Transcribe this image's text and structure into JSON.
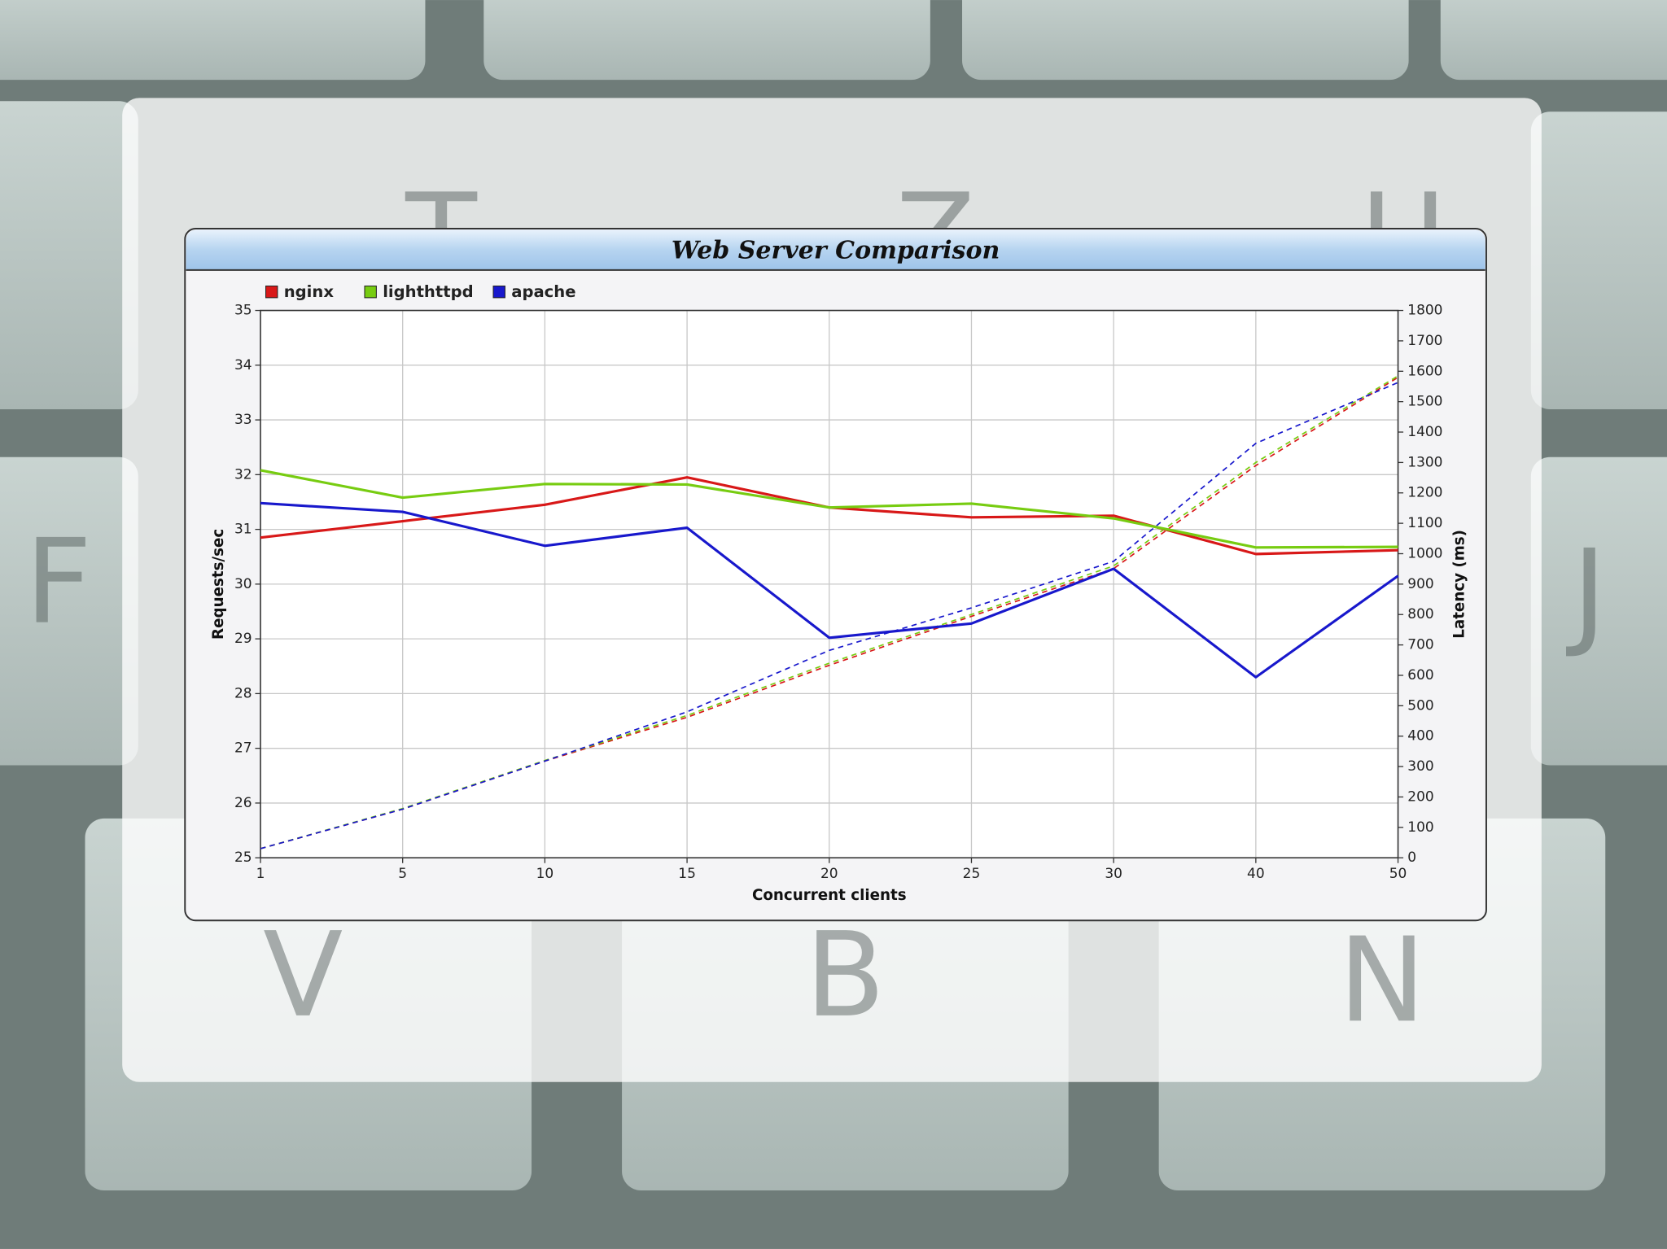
{
  "keyboard_keys": [
    "T",
    "Z",
    "U",
    "F",
    "J",
    "V",
    "B",
    "N"
  ],
  "chart_data": {
    "type": "line",
    "title": "Web Server Comparison",
    "x_label": "Concurrent clients",
    "y_label": "Requests/sec",
    "y2_label": "Latency (ms)",
    "categories": [
      "1",
      "5",
      "10",
      "15",
      "20",
      "25",
      "30",
      "40",
      "50"
    ],
    "ylim": [
      25,
      35
    ],
    "yticks": [
      25,
      26,
      27,
      28,
      29,
      30,
      31,
      32,
      33,
      34,
      35
    ],
    "y2lim": [
      0,
      1800
    ],
    "y2ticks": [
      0,
      100,
      200,
      300,
      400,
      500,
      600,
      700,
      800,
      900,
      1000,
      1100,
      1200,
      1300,
      1400,
      1500,
      1600,
      1700,
      1800
    ],
    "grid": true,
    "series": [
      {
        "name": "nginx",
        "color": "#d81818",
        "values": [
          30.85,
          31.15,
          31.45,
          31.95,
          31.4,
          31.22,
          31.25,
          30.55,
          30.62
        ],
        "latency": [
          30,
          160,
          318,
          462,
          633,
          794,
          951,
          1290,
          1580
        ]
      },
      {
        "name": "lighthttpd",
        "color": "#77cc11",
        "values": [
          32.08,
          31.58,
          31.83,
          31.82,
          31.4,
          31.47,
          31.2,
          30.67,
          30.68
        ],
        "latency": [
          30,
          162,
          320,
          468,
          640,
          800,
          960,
          1300,
          1585
        ]
      },
      {
        "name": "apache",
        "color": "#1818cc",
        "values": [
          31.48,
          31.32,
          30.7,
          31.03,
          29.02,
          29.28,
          30.28,
          28.3,
          30.15
        ],
        "latency": [
          30,
          160,
          318,
          480,
          682,
          822,
          975,
          1363,
          1563
        ]
      }
    ]
  }
}
